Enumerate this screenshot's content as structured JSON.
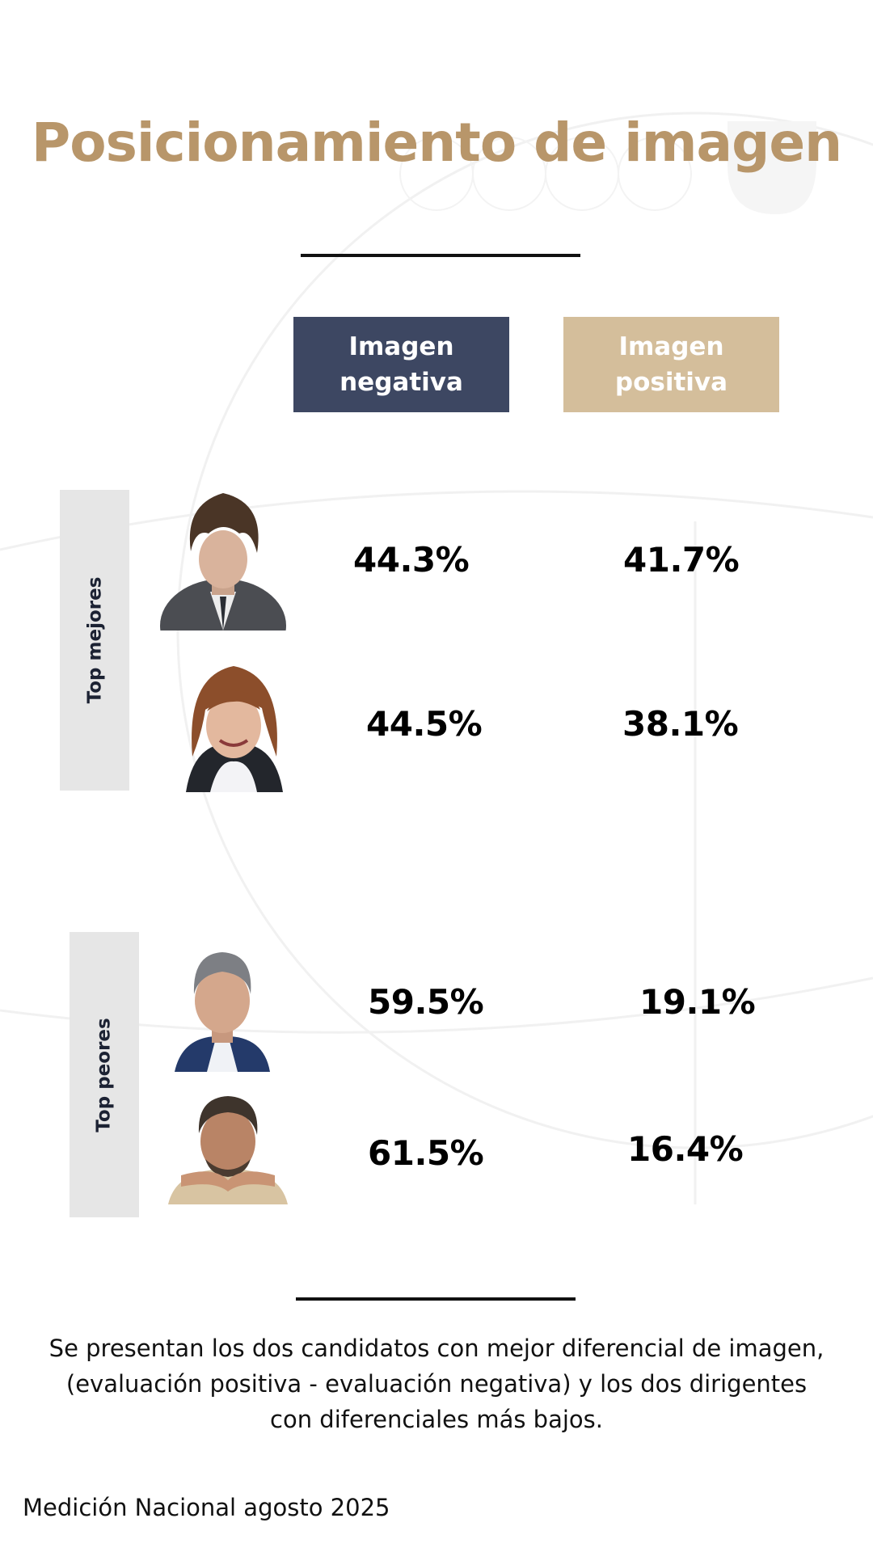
{
  "title": "Posicionamiento de imagen",
  "columns": {
    "negative": "Imagen negativa",
    "positive": "Imagen positiva"
  },
  "colors": {
    "title": "#B8966A",
    "negative_header": "#3D4762",
    "positive_header": "#D4BE9B",
    "group_tab": "#E6E6E6"
  },
  "groups": {
    "best": {
      "label": "Top mejores",
      "rows": [
        {
          "negative": "44.3%",
          "positive": "41.7%"
        },
        {
          "negative": "44.5%",
          "positive": "38.1%"
        }
      ]
    },
    "worst": {
      "label": "Top peores",
      "rows": [
        {
          "negative": "59.5%",
          "positive": "19.1%"
        },
        {
          "negative": "61.5%",
          "positive": "16.4%"
        }
      ]
    }
  },
  "note": "Se presentan los dos candidatos con mejor diferencial de imagen, (evaluación positiva - evaluación negativa) y los dos dirigentes con diferenciales más bajos.",
  "source": "Medición Nacional agosto 2025"
}
